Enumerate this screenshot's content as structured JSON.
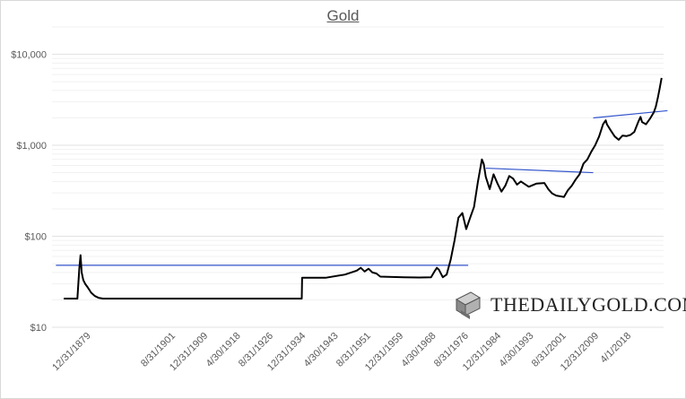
{
  "chart_data": {
    "type": "line",
    "title": "Gold",
    "xlabel": "",
    "ylabel": "",
    "y_scale": "log",
    "ylim": [
      10,
      20000
    ],
    "y_ticks": [
      {
        "value": 10,
        "label": "$10"
      },
      {
        "value": 100,
        "label": "$100"
      },
      {
        "value": 1000,
        "label": "$1,000"
      },
      {
        "value": 10000,
        "label": "$10,000"
      }
    ],
    "x_range": [
      1870.0,
      2026.5
    ],
    "x_ticks": [
      {
        "value": 1879.99,
        "label": "12/31/1879"
      },
      {
        "value": 1901.66,
        "label": "8/31/1901"
      },
      {
        "value": 1909.99,
        "label": "12/31/1909"
      },
      {
        "value": 1918.33,
        "label": "4/30/1918"
      },
      {
        "value": 1926.66,
        "label": "8/31/1926"
      },
      {
        "value": 1934.99,
        "label": "12/31/1934"
      },
      {
        "value": 1943.33,
        "label": "4/30/1943"
      },
      {
        "value": 1951.66,
        "label": "8/31/1951"
      },
      {
        "value": 1959.99,
        "label": "12/31/1959"
      },
      {
        "value": 1968.33,
        "label": "4/30/1968"
      },
      {
        "value": 1976.66,
        "label": "8/31/1976"
      },
      {
        "value": 1984.99,
        "label": "12/31/1984"
      },
      {
        "value": 1993.33,
        "label": "4/30/1993"
      },
      {
        "value": 2001.66,
        "label": "8/31/2001"
      },
      {
        "value": 2009.99,
        "label": "12/31/2009"
      },
      {
        "value": 2018.25,
        "label": "4/1/2018"
      }
    ],
    "grid": "horizontal minor lines",
    "series": [
      {
        "color": "#000000",
        "points": [
          [
            1873.0,
            20.67
          ],
          [
            1875.0,
            20.67
          ],
          [
            1876.5,
            20.67
          ],
          [
            1877.0,
            45.0
          ],
          [
            1877.3,
            62.0
          ],
          [
            1877.6,
            40.0
          ],
          [
            1878.0,
            33.0
          ],
          [
            1878.5,
            30.0
          ],
          [
            1879.0,
            28.0
          ],
          [
            1879.5,
            26.0
          ],
          [
            1880.0,
            24.0
          ],
          [
            1881.0,
            22.0
          ],
          [
            1882.0,
            21.0
          ],
          [
            1883.0,
            20.67
          ],
          [
            1900.0,
            20.67
          ],
          [
            1920.0,
            20.67
          ],
          [
            1933.9,
            20.67
          ],
          [
            1934.0,
            35.0
          ],
          [
            1940.0,
            35.0
          ],
          [
            1945.0,
            38.0
          ],
          [
            1948.0,
            42.0
          ],
          [
            1949.0,
            45.0
          ],
          [
            1950.0,
            41.0
          ],
          [
            1951.0,
            44.0
          ],
          [
            1952.0,
            40.0
          ],
          [
            1953.0,
            39.0
          ],
          [
            1954.0,
            36.0
          ],
          [
            1960.0,
            35.5
          ],
          [
            1964.0,
            35.2
          ],
          [
            1967.0,
            35.5
          ],
          [
            1968.0,
            42.0
          ],
          [
            1968.5,
            45.0
          ],
          [
            1969.0,
            43.0
          ],
          [
            1970.0,
            35.5
          ],
          [
            1971.0,
            38.0
          ],
          [
            1972.0,
            55.0
          ],
          [
            1973.0,
            90.0
          ],
          [
            1974.0,
            160.0
          ],
          [
            1975.0,
            180.0
          ],
          [
            1976.0,
            120.0
          ],
          [
            1977.0,
            160.0
          ],
          [
            1978.0,
            210.0
          ],
          [
            1979.0,
            400.0
          ],
          [
            1980.0,
            700.0
          ],
          [
            1980.5,
            620.0
          ],
          [
            1981.0,
            450.0
          ],
          [
            1982.0,
            330.0
          ],
          [
            1983.0,
            480.0
          ],
          [
            1984.0,
            380.0
          ],
          [
            1985.0,
            310.0
          ],
          [
            1986.0,
            360.0
          ],
          [
            1987.0,
            460.0
          ],
          [
            1988.0,
            430.0
          ],
          [
            1989.0,
            370.0
          ],
          [
            1990.0,
            400.0
          ],
          [
            1992.0,
            350.0
          ],
          [
            1994.0,
            380.0
          ],
          [
            1996.0,
            385.0
          ],
          [
            1997.0,
            330.0
          ],
          [
            1998.0,
            295.0
          ],
          [
            1999.0,
            280.0
          ],
          [
            2000.0,
            275.0
          ],
          [
            2001.0,
            270.0
          ],
          [
            2002.0,
            320.0
          ],
          [
            2003.0,
            360.0
          ],
          [
            2004.0,
            420.0
          ],
          [
            2005.0,
            480.0
          ],
          [
            2006.0,
            630.0
          ],
          [
            2007.0,
            700.0
          ],
          [
            2008.0,
            850.0
          ],
          [
            2009.0,
            1000.0
          ],
          [
            2010.0,
            1250.0
          ],
          [
            2011.0,
            1700.0
          ],
          [
            2011.7,
            1880.0
          ],
          [
            2012.0,
            1700.0
          ],
          [
            2013.0,
            1450.0
          ],
          [
            2014.0,
            1250.0
          ],
          [
            2015.0,
            1150.0
          ],
          [
            2016.0,
            1280.0
          ],
          [
            2017.0,
            1260.0
          ],
          [
            2018.0,
            1300.0
          ],
          [
            2019.0,
            1400.0
          ],
          [
            2020.0,
            1800.0
          ],
          [
            2020.6,
            2050.0
          ],
          [
            2021.0,
            1800.0
          ],
          [
            2022.0,
            1700.0
          ],
          [
            2023.0,
            1950.0
          ],
          [
            2024.0,
            2300.0
          ],
          [
            2024.5,
            2650.0
          ],
          [
            2025.0,
            3300.0
          ],
          [
            2025.5,
            4200.0
          ],
          [
            2026.0,
            5500.0
          ]
        ]
      }
    ],
    "trendlines": [
      {
        "color": "#3355cc",
        "points": [
          [
            1871.0,
            48.0
          ],
          [
            1976.5,
            48.0
          ]
        ]
      },
      {
        "color": "#3355cc",
        "points": [
          [
            1981.0,
            560.0
          ],
          [
            2008.5,
            500.0
          ]
        ]
      },
      {
        "color": "#3355cc",
        "points": [
          [
            2008.5,
            2000.0
          ],
          [
            2027.5,
            2400.0
          ]
        ]
      }
    ]
  },
  "watermark": {
    "text": "THEDAILYGOLD.COM",
    "icon": "gold-bar-icon"
  }
}
